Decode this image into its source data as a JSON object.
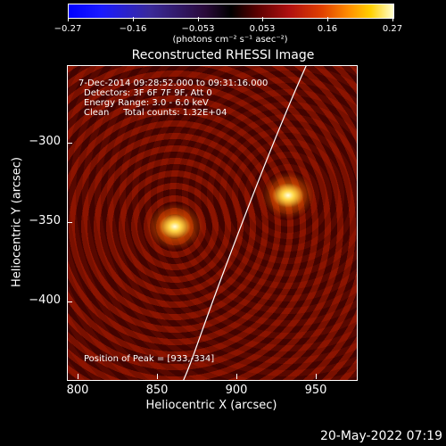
{
  "colorbar": {
    "ticks": [
      "−0.27",
      "−0.16",
      "−0.053",
      "0.053",
      "0.16",
      "0.27"
    ],
    "units": "(photons cm⁻² s⁻¹ asec⁻²)"
  },
  "title": "Reconstructed RHESSI Image",
  "info": {
    "time": "7-Dec-2014 09:28:52.000 to 09:31:16.000",
    "detectors": "Detectors: 3F 6F 7F 9F, Att 0",
    "energy": "Energy Range: 3.0 - 6.0 keV",
    "clean": "Clean     Total counts: 1.32E+04",
    "peak": "Position of Peak = [933,-334]"
  },
  "axes": {
    "xlabel": "Heliocentric X (arcsec)",
    "ylabel": "Heliocentric Y (arcsec)",
    "xticks": [
      "800",
      "850",
      "900",
      "950"
    ],
    "yticks": [
      "−300",
      "−350",
      "−400"
    ]
  },
  "datestamp": "20-May-2022 07:19"
}
